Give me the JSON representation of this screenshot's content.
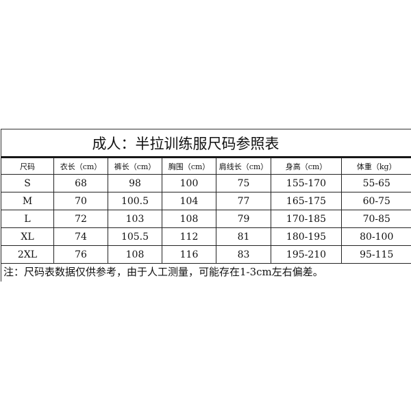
{
  "title": "成人：半拉训练服尺码参照表",
  "headers": [
    "尺码",
    "衣长（cm）",
    "裤长（cm）",
    "胸围（cm）",
    "肩线长（cm）",
    "身高（cm）",
    "体重（kg）"
  ],
  "rows": [
    [
      "S",
      "68",
      "98",
      "100",
      "75",
      "155-170",
      "55-65"
    ],
    [
      "M",
      "70",
      "100.5",
      "104",
      "77",
      "165-175",
      "60-75"
    ],
    [
      "L",
      "72",
      "103",
      "108",
      "79",
      "170-185",
      "70-85"
    ],
    [
      "XL",
      "74",
      "105.5",
      "112",
      "81",
      "180-195",
      "80-100"
    ],
    [
      "2XL",
      "76",
      "108",
      "116",
      "83",
      "195-210",
      "95-115"
    ]
  ],
  "note": "注：尺码表数据仅供参考，由于人工测量，可能存在1-3cm左右偏差。"
}
